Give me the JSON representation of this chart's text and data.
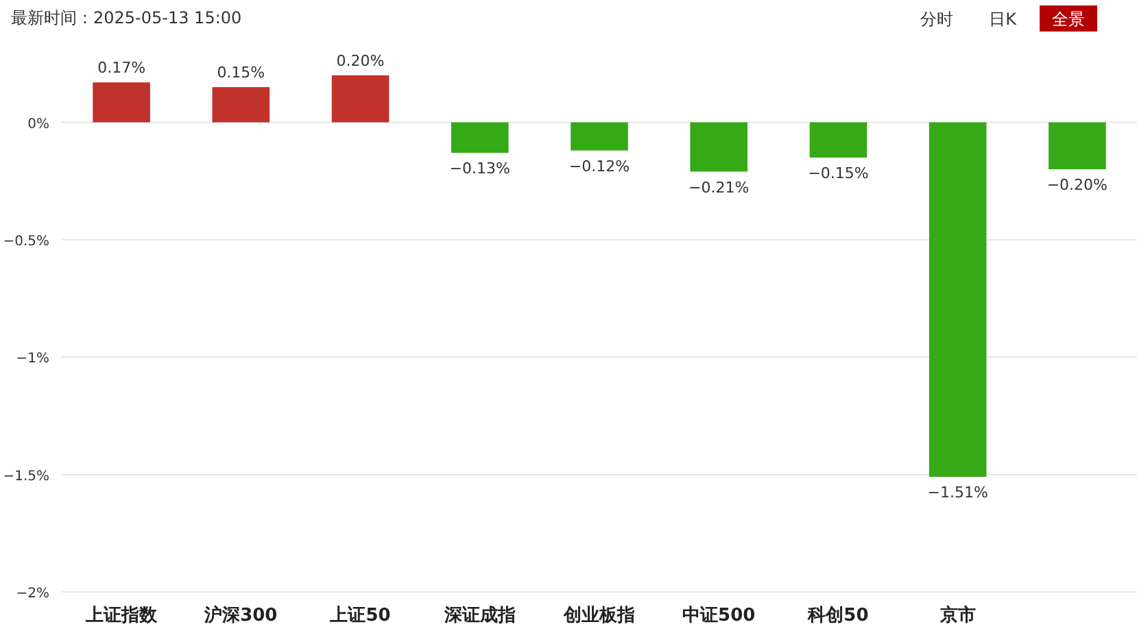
{
  "chart_data": {
    "type": "bar",
    "title": "最新时间：2025-05-13 15:00",
    "annotations": [
      "分时",
      "日K",
      "全景"
    ],
    "categories": [
      "上证指数",
      "沪深300",
      "上证50",
      "深证成指",
      "创业板指",
      "中证500",
      "科创50",
      "京市",
      null
    ],
    "values": [
      0.17,
      0.15,
      0.2,
      -0.13,
      -0.12,
      -0.21,
      -0.15,
      -1.51,
      -0.2
    ],
    "colors": [
      "#c1322d",
      "#c1322d",
      "#c1322d",
      "#36a917",
      "#36a917",
      "#36a917",
      "#36a917",
      "#36a917",
      "#36a917"
    ],
    "value_labels": [
      "0.17%",
      "0.15%",
      "0.20%",
      "−0.13%",
      "−0.12%",
      "−0.21%",
      "−0.15%",
      "−1.51%",
      "−0.20%"
    ],
    "ylim": [
      -2,
      0.2
    ],
    "yticks": [
      {
        "value": 0,
        "label": "0%"
      },
      {
        "value": -0.5,
        "label": "−0.5%"
      },
      {
        "value": -1,
        "label": "−1%"
      },
      {
        "value": -1.5,
        "label": "−1.5%"
      },
      {
        "value": -2,
        "label": "−2%"
      }
    ],
    "grid": "y"
  }
}
